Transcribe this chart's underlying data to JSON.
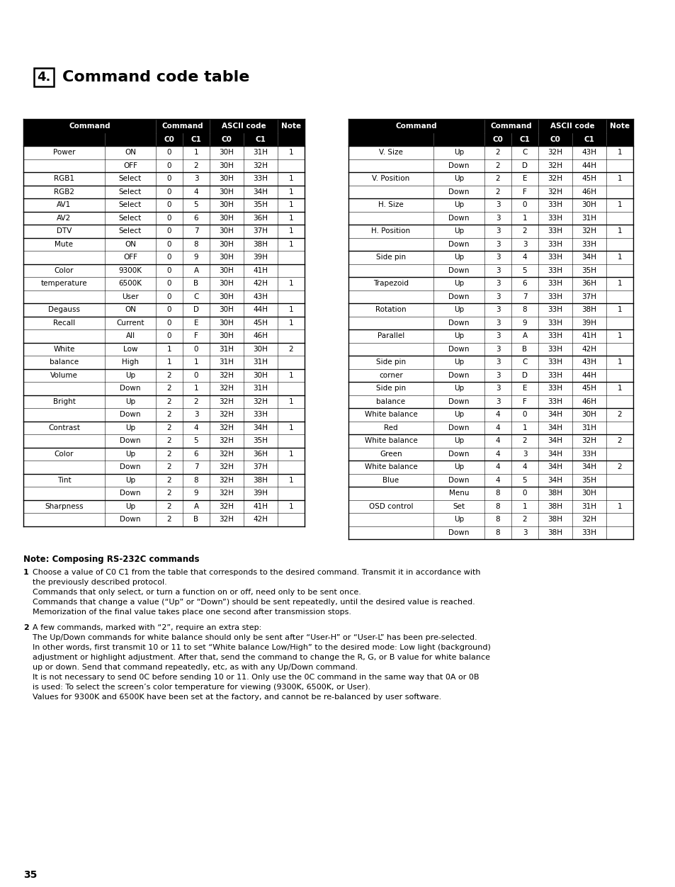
{
  "title_num": "4.",
  "title_text": "Command code table",
  "left_table_rows": [
    [
      "Power",
      "ON",
      "0",
      "1",
      "30H",
      "31H",
      "1"
    ],
    [
      "",
      "OFF",
      "0",
      "2",
      "30H",
      "32H",
      ""
    ],
    [
      "RGB1",
      "Select",
      "0",
      "3",
      "30H",
      "33H",
      "1"
    ],
    [
      "RGB2",
      "Select",
      "0",
      "4",
      "30H",
      "34H",
      "1"
    ],
    [
      "AV1",
      "Select",
      "0",
      "5",
      "30H",
      "35H",
      "1"
    ],
    [
      "AV2",
      "Select",
      "0",
      "6",
      "30H",
      "36H",
      "1"
    ],
    [
      "DTV",
      "Select",
      "0",
      "7",
      "30H",
      "37H",
      "1"
    ],
    [
      "Mute",
      "ON",
      "0",
      "8",
      "30H",
      "38H",
      "1"
    ],
    [
      "",
      "OFF",
      "0",
      "9",
      "30H",
      "39H",
      ""
    ],
    [
      "Color",
      "9300K",
      "0",
      "A",
      "30H",
      "41H",
      ""
    ],
    [
      "temperature",
      "6500K",
      "0",
      "B",
      "30H",
      "42H",
      "1"
    ],
    [
      "",
      "User",
      "0",
      "C",
      "30H",
      "43H",
      ""
    ],
    [
      "Degauss",
      "ON",
      "0",
      "D",
      "30H",
      "44H",
      "1"
    ],
    [
      "Recall",
      "Current",
      "0",
      "E",
      "30H",
      "45H",
      "1"
    ],
    [
      "",
      "All",
      "0",
      "F",
      "30H",
      "46H",
      ""
    ],
    [
      "White",
      "Low",
      "1",
      "0",
      "31H",
      "30H",
      "2"
    ],
    [
      "balance",
      "High",
      "1",
      "1",
      "31H",
      "31H",
      ""
    ],
    [
      "Volume",
      "Up",
      "2",
      "0",
      "32H",
      "30H",
      "1"
    ],
    [
      "",
      "Down",
      "2",
      "1",
      "32H",
      "31H",
      ""
    ],
    [
      "Bright",
      "Up",
      "2",
      "2",
      "32H",
      "32H",
      "1"
    ],
    [
      "",
      "Down",
      "2",
      "3",
      "32H",
      "33H",
      ""
    ],
    [
      "Contrast",
      "Up",
      "2",
      "4",
      "32H",
      "34H",
      "1"
    ],
    [
      "",
      "Down",
      "2",
      "5",
      "32H",
      "35H",
      ""
    ],
    [
      "Color",
      "Up",
      "2",
      "6",
      "32H",
      "36H",
      "1"
    ],
    [
      "",
      "Down",
      "2",
      "7",
      "32H",
      "37H",
      ""
    ],
    [
      "Tint",
      "Up",
      "2",
      "8",
      "32H",
      "38H",
      "1"
    ],
    [
      "",
      "Down",
      "2",
      "9",
      "32H",
      "39H",
      ""
    ],
    [
      "Sharpness",
      "Up",
      "2",
      "A",
      "32H",
      "41H",
      "1"
    ],
    [
      "",
      "Down",
      "2",
      "B",
      "32H",
      "42H",
      ""
    ]
  ],
  "left_group_starts": [
    0,
    2,
    3,
    4,
    5,
    6,
    7,
    9,
    12,
    13,
    15,
    17,
    19,
    21,
    23,
    25,
    27
  ],
  "right_table_rows": [
    [
      "V. Size",
      "Up",
      "2",
      "C",
      "32H",
      "43H",
      "1"
    ],
    [
      "",
      "Down",
      "2",
      "D",
      "32H",
      "44H",
      ""
    ],
    [
      "V. Position",
      "Up",
      "2",
      "E",
      "32H",
      "45H",
      "1"
    ],
    [
      "",
      "Down",
      "2",
      "F",
      "32H",
      "46H",
      ""
    ],
    [
      "H. Size",
      "Up",
      "3",
      "0",
      "33H",
      "30H",
      "1"
    ],
    [
      "",
      "Down",
      "3",
      "1",
      "33H",
      "31H",
      ""
    ],
    [
      "H. Position",
      "Up",
      "3",
      "2",
      "33H",
      "32H",
      "1"
    ],
    [
      "",
      "Down",
      "3",
      "3",
      "33H",
      "33H",
      ""
    ],
    [
      "Side pin",
      "Up",
      "3",
      "4",
      "33H",
      "34H",
      "1"
    ],
    [
      "",
      "Down",
      "3",
      "5",
      "33H",
      "35H",
      ""
    ],
    [
      "Trapezoid",
      "Up",
      "3",
      "6",
      "33H",
      "36H",
      "1"
    ],
    [
      "",
      "Down",
      "3",
      "7",
      "33H",
      "37H",
      ""
    ],
    [
      "Rotation",
      "Up",
      "3",
      "8",
      "33H",
      "38H",
      "1"
    ],
    [
      "",
      "Down",
      "3",
      "9",
      "33H",
      "39H",
      ""
    ],
    [
      "Parallel",
      "Up",
      "3",
      "A",
      "33H",
      "41H",
      "1"
    ],
    [
      "",
      "Down",
      "3",
      "B",
      "33H",
      "42H",
      ""
    ],
    [
      "Side pin",
      "Up",
      "3",
      "C",
      "33H",
      "43H",
      "1"
    ],
    [
      "corner",
      "Down",
      "3",
      "D",
      "33H",
      "44H",
      ""
    ],
    [
      "Side pin",
      "Up",
      "3",
      "E",
      "33H",
      "45H",
      "1"
    ],
    [
      "balance",
      "Down",
      "3",
      "F",
      "33H",
      "46H",
      ""
    ],
    [
      "White balance",
      "Up",
      "4",
      "0",
      "34H",
      "30H",
      "2"
    ],
    [
      "Red",
      "Down",
      "4",
      "1",
      "34H",
      "31H",
      ""
    ],
    [
      "White balance",
      "Up",
      "4",
      "2",
      "34H",
      "32H",
      "2"
    ],
    [
      "Green",
      "Down",
      "4",
      "3",
      "34H",
      "33H",
      ""
    ],
    [
      "White balance",
      "Up",
      "4",
      "4",
      "34H",
      "34H",
      "2"
    ],
    [
      "Blue",
      "Down",
      "4",
      "5",
      "34H",
      "35H",
      ""
    ],
    [
      "",
      "Menu",
      "8",
      "0",
      "38H",
      "30H",
      ""
    ],
    [
      "OSD control",
      "Set",
      "8",
      "1",
      "38H",
      "31H",
      "1"
    ],
    [
      "",
      "Up",
      "8",
      "2",
      "38H",
      "32H",
      ""
    ],
    [
      "",
      "Down",
      "8",
      "3",
      "38H",
      "33H",
      ""
    ]
  ],
  "right_group_starts": [
    0,
    2,
    4,
    6,
    8,
    10,
    12,
    14,
    16,
    18,
    20,
    22,
    24,
    26
  ],
  "note_title": "Note: Composing RS-232C commands",
  "note1_bullet": "1",
  "note1_lines": [
    "Choose a value of C0 C1 from the table that corresponds to the desired command. Transmit it in accordance with",
    "the previously described protocol.",
    "Commands that only select, or turn a function on or off, need only to be sent once.",
    "Commands that change a value (“Up” or “Down”) should be sent repeatedly, until the desired value is reached.",
    "Memorization of the final value takes place one second after transmission stops."
  ],
  "note2_bullet": "2",
  "note2_lines": [
    "A few commands, marked with “2”, require an extra step:",
    "The Up/Down commands for white balance should only be sent after “User-H” or “User-L” has been pre-selected.",
    "In other words, first transmit 10 or 11 to set “White balance Low/High” to the desired mode: Low light (background)",
    "adjustment or highlight adjustment. After that, send the command to change the R, G, or B value for white balance",
    "up or down. Send that command repeatedly, etc, as with any Up/Down command.",
    "It is not necessary to send 0C before sending 10 or 11. Only use the 0C command in the same way that 0A or 0B",
    "is used: To select the screen’s color temperature for viewing (9300K, 6500K, or User).",
    "Values for 9300K and 6500K have been set at the factory, and cannot be re-balanced by user software."
  ],
  "page_number": "35"
}
